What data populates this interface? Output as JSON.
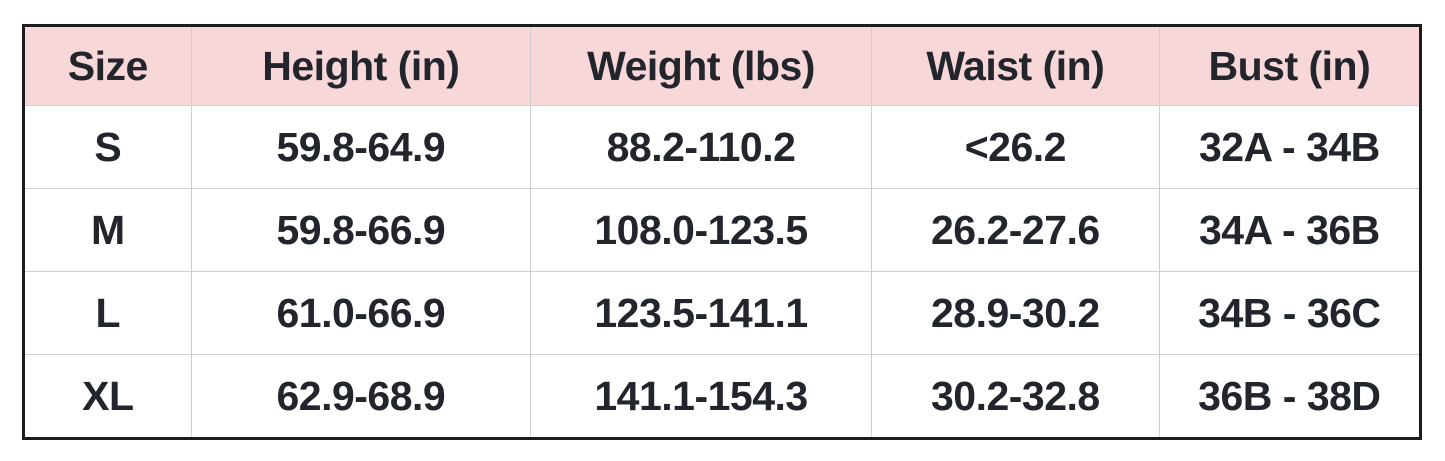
{
  "colors": {
    "header_bg": "#f8d7d9",
    "text": "#23252d",
    "outer_border": "#1c1c1e",
    "inner_border": "#cfcfcf",
    "row_bg": "#ffffff"
  },
  "chart_data": {
    "type": "table",
    "columns": [
      "Size",
      "Height (in)",
      "Weight (lbs)",
      "Waist (in)",
      "Bust (in)"
    ],
    "rows": [
      [
        "S",
        "59.8-64.9",
        "88.2-110.2",
        "<26.2",
        "32A - 34B"
      ],
      [
        "M",
        "59.8-66.9",
        "108.0-123.5",
        "26.2-27.6",
        "34A - 36B"
      ],
      [
        "L",
        "61.0-66.9",
        "123.5-141.1",
        "28.9-30.2",
        "34B - 36C"
      ],
      [
        "XL",
        "62.9-68.9",
        "141.1-154.3",
        "30.2-32.8",
        "36B - 38D"
      ]
    ]
  }
}
